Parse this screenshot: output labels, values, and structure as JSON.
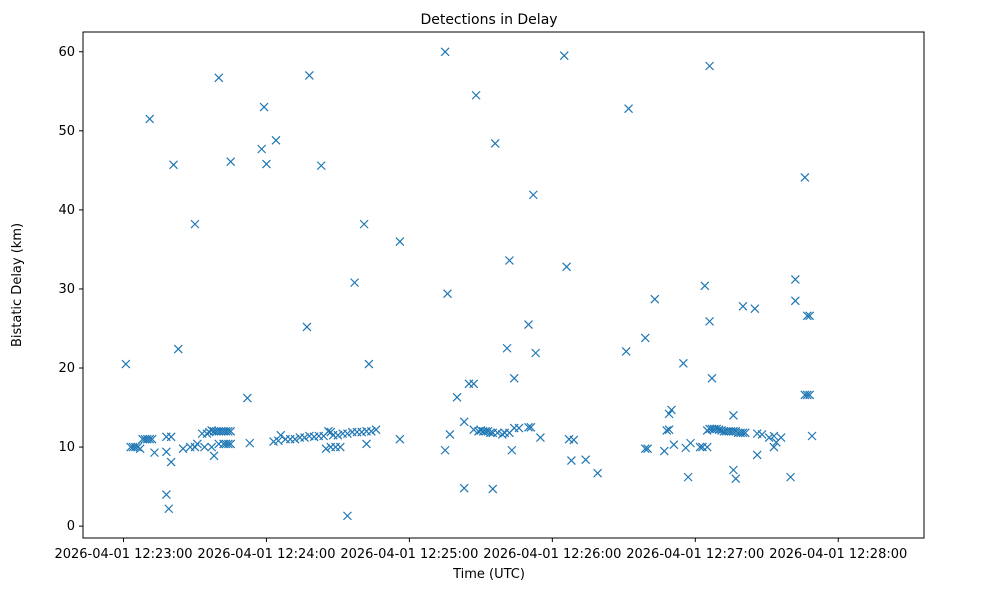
{
  "chart_data": {
    "type": "scatter",
    "title": "Detections in Delay",
    "xlabel": "Time (UTC)",
    "ylabel": "Bistatic Delay (km)",
    "marker": "x",
    "color": "#1f77b4",
    "xlim_seconds": [
      -17,
      336
    ],
    "ylim": [
      -1.5,
      62.5
    ],
    "xticks": [
      {
        "t": 0,
        "label": "2026-04-01 12:23:00"
      },
      {
        "t": 60,
        "label": "2026-04-01 12:24:00"
      },
      {
        "t": 120,
        "label": "2026-04-01 12:25:00"
      },
      {
        "t": 180,
        "label": "2026-04-01 12:26:00"
      },
      {
        "t": 240,
        "label": "2026-04-01 12:27:00"
      },
      {
        "t": 300,
        "label": "2026-04-01 12:28:00"
      }
    ],
    "yticks": [
      0,
      10,
      20,
      30,
      40,
      50,
      60
    ],
    "points_note": "x = seconds after 2026-04-01 12:23:00 UTC, y = bistatic delay (km)",
    "points": [
      [
        1,
        20.5
      ],
      [
        3,
        10
      ],
      [
        4,
        10
      ],
      [
        5,
        10
      ],
      [
        6,
        10
      ],
      [
        7,
        9.8
      ],
      [
        8,
        11
      ],
      [
        9,
        11
      ],
      [
        10,
        11
      ],
      [
        11,
        11
      ],
      [
        12,
        11
      ],
      [
        13,
        9.3
      ],
      [
        11,
        51.5
      ],
      [
        18,
        11.3
      ],
      [
        20,
        11.3
      ],
      [
        18,
        9.4
      ],
      [
        20,
        8.1
      ],
      [
        18,
        4
      ],
      [
        19,
        2.2
      ],
      [
        21,
        45.7
      ],
      [
        23,
        22.4
      ],
      [
        25,
        9.8
      ],
      [
        28,
        10
      ],
      [
        30,
        38.2
      ],
      [
        30,
        10
      ],
      [
        31,
        10.4
      ],
      [
        33,
        11.7
      ],
      [
        34,
        10
      ],
      [
        35,
        11.7
      ],
      [
        36,
        11.9
      ],
      [
        37,
        12.1
      ],
      [
        38,
        12
      ],
      [
        39,
        12
      ],
      [
        40,
        12
      ],
      [
        41,
        12
      ],
      [
        42,
        12
      ],
      [
        43,
        12
      ],
      [
        44,
        12
      ],
      [
        45,
        12
      ],
      [
        37,
        10
      ],
      [
        38,
        8.9
      ],
      [
        40,
        10.4
      ],
      [
        42,
        10.4
      ],
      [
        43,
        10.4
      ],
      [
        44,
        10.4
      ],
      [
        45,
        10.4
      ],
      [
        40,
        56.7
      ],
      [
        45,
        46.1
      ],
      [
        52,
        16.2
      ],
      [
        53,
        10.5
      ],
      [
        58,
        47.7
      ],
      [
        59,
        53
      ],
      [
        60,
        45.8
      ],
      [
        63,
        10.7
      ],
      [
        64,
        48.8
      ],
      [
        65,
        10.8
      ],
      [
        66,
        11.5
      ],
      [
        68,
        11
      ],
      [
        70,
        11
      ],
      [
        72,
        11
      ],
      [
        74,
        11.2
      ],
      [
        76,
        11.2
      ],
      [
        78,
        11.4
      ],
      [
        80,
        11.3
      ],
      [
        82,
        11.4
      ],
      [
        84,
        11.4
      ],
      [
        77,
        25.2
      ],
      [
        78,
        57
      ],
      [
        83,
        45.6
      ],
      [
        85,
        9.8
      ],
      [
        87,
        10
      ],
      [
        89,
        10
      ],
      [
        91,
        10
      ],
      [
        86,
        12
      ],
      [
        87,
        11.9
      ],
      [
        88,
        11.5
      ],
      [
        90,
        11.5
      ],
      [
        92,
        11.7
      ],
      [
        94,
        11.7
      ],
      [
        96,
        11.9
      ],
      [
        98,
        11.9
      ],
      [
        100,
        11.9
      ],
      [
        102,
        12
      ],
      [
        104,
        12
      ],
      [
        106,
        12.2
      ],
      [
        102,
        10.4
      ],
      [
        94,
        1.3
      ],
      [
        97,
        30.8
      ],
      [
        101,
        38.2
      ],
      [
        103,
        20.5
      ],
      [
        116,
        36
      ],
      [
        116,
        11
      ],
      [
        135,
        60
      ],
      [
        135,
        9.6
      ],
      [
        136,
        29.4
      ],
      [
        137,
        11.6
      ],
      [
        140,
        16.3
      ],
      [
        143,
        13.2
      ],
      [
        143,
        4.8
      ],
      [
        145,
        18
      ],
      [
        147,
        18
      ],
      [
        147,
        12.2
      ],
      [
        149,
        12
      ],
      [
        150,
        12.1
      ],
      [
        151,
        12
      ],
      [
        152,
        12
      ],
      [
        153,
        12
      ],
      [
        154,
        11.8
      ],
      [
        155,
        11.8
      ],
      [
        157,
        11.8
      ],
      [
        159,
        11.6
      ],
      [
        160,
        11.8
      ],
      [
        162,
        11.8
      ],
      [
        148,
        54.5
      ],
      [
        155,
        4.7
      ],
      [
        156,
        48.4
      ],
      [
        161,
        22.5
      ],
      [
        162,
        33.6
      ],
      [
        163,
        9.6
      ],
      [
        164,
        12.4
      ],
      [
        164,
        18.7
      ],
      [
        166,
        12.4
      ],
      [
        170,
        12.5
      ],
      [
        171,
        12.5
      ],
      [
        170,
        25.5
      ],
      [
        172,
        41.9
      ],
      [
        173,
        21.9
      ],
      [
        175,
        11.2
      ],
      [
        185,
        59.5
      ],
      [
        186,
        32.8
      ],
      [
        187,
        11
      ],
      [
        188,
        8.3
      ],
      [
        189,
        10.9
      ],
      [
        194,
        8.4
      ],
      [
        199,
        6.7
      ],
      [
        211,
        22.1
      ],
      [
        212,
        52.8
      ],
      [
        219,
        9.8
      ],
      [
        219,
        23.8
      ],
      [
        220,
        9.8
      ],
      [
        223,
        28.7
      ],
      [
        227,
        9.5
      ],
      [
        228,
        12.1
      ],
      [
        229,
        12.2
      ],
      [
        229,
        14.2
      ],
      [
        230,
        14.7
      ],
      [
        231,
        10.3
      ],
      [
        235,
        20.6
      ],
      [
        236,
        9.9
      ],
      [
        237,
        6.2
      ],
      [
        238,
        10.5
      ],
      [
        242,
        10
      ],
      [
        243,
        10
      ],
      [
        245,
        10
      ],
      [
        245,
        12.1
      ],
      [
        246,
        12.3
      ],
      [
        247,
        12.3
      ],
      [
        248,
        12.3
      ],
      [
        249,
        12.3
      ],
      [
        250,
        12.2
      ],
      [
        251,
        12.1
      ],
      [
        252,
        12
      ],
      [
        253,
        12
      ],
      [
        254,
        12
      ],
      [
        255,
        12
      ],
      [
        256,
        12
      ],
      [
        257,
        12
      ],
      [
        258,
        11.8
      ],
      [
        259,
        11.8
      ],
      [
        260,
        11.8
      ],
      [
        261,
        11.8
      ],
      [
        244,
        30.4
      ],
      [
        246,
        25.9
      ],
      [
        246,
        58.2
      ],
      [
        247,
        18.7
      ],
      [
        256,
        14
      ],
      [
        256,
        7.1
      ],
      [
        257,
        6
      ],
      [
        260,
        27.8
      ],
      [
        265,
        27.5
      ],
      [
        266,
        11.7
      ],
      [
        266,
        9
      ],
      [
        268,
        11.6
      ],
      [
        271,
        11.2
      ],
      [
        273,
        11.4
      ],
      [
        273,
        10
      ],
      [
        274,
        10.6
      ],
      [
        276,
        11.2
      ],
      [
        280,
        6.2
      ],
      [
        282,
        28.5
      ],
      [
        282,
        31.2
      ],
      [
        286,
        44.1
      ],
      [
        286,
        16.6
      ],
      [
        287,
        16.6
      ],
      [
        287,
        26.6
      ],
      [
        288,
        16.6
      ],
      [
        288,
        26.6
      ],
      [
        289,
        11.4
      ]
    ]
  }
}
